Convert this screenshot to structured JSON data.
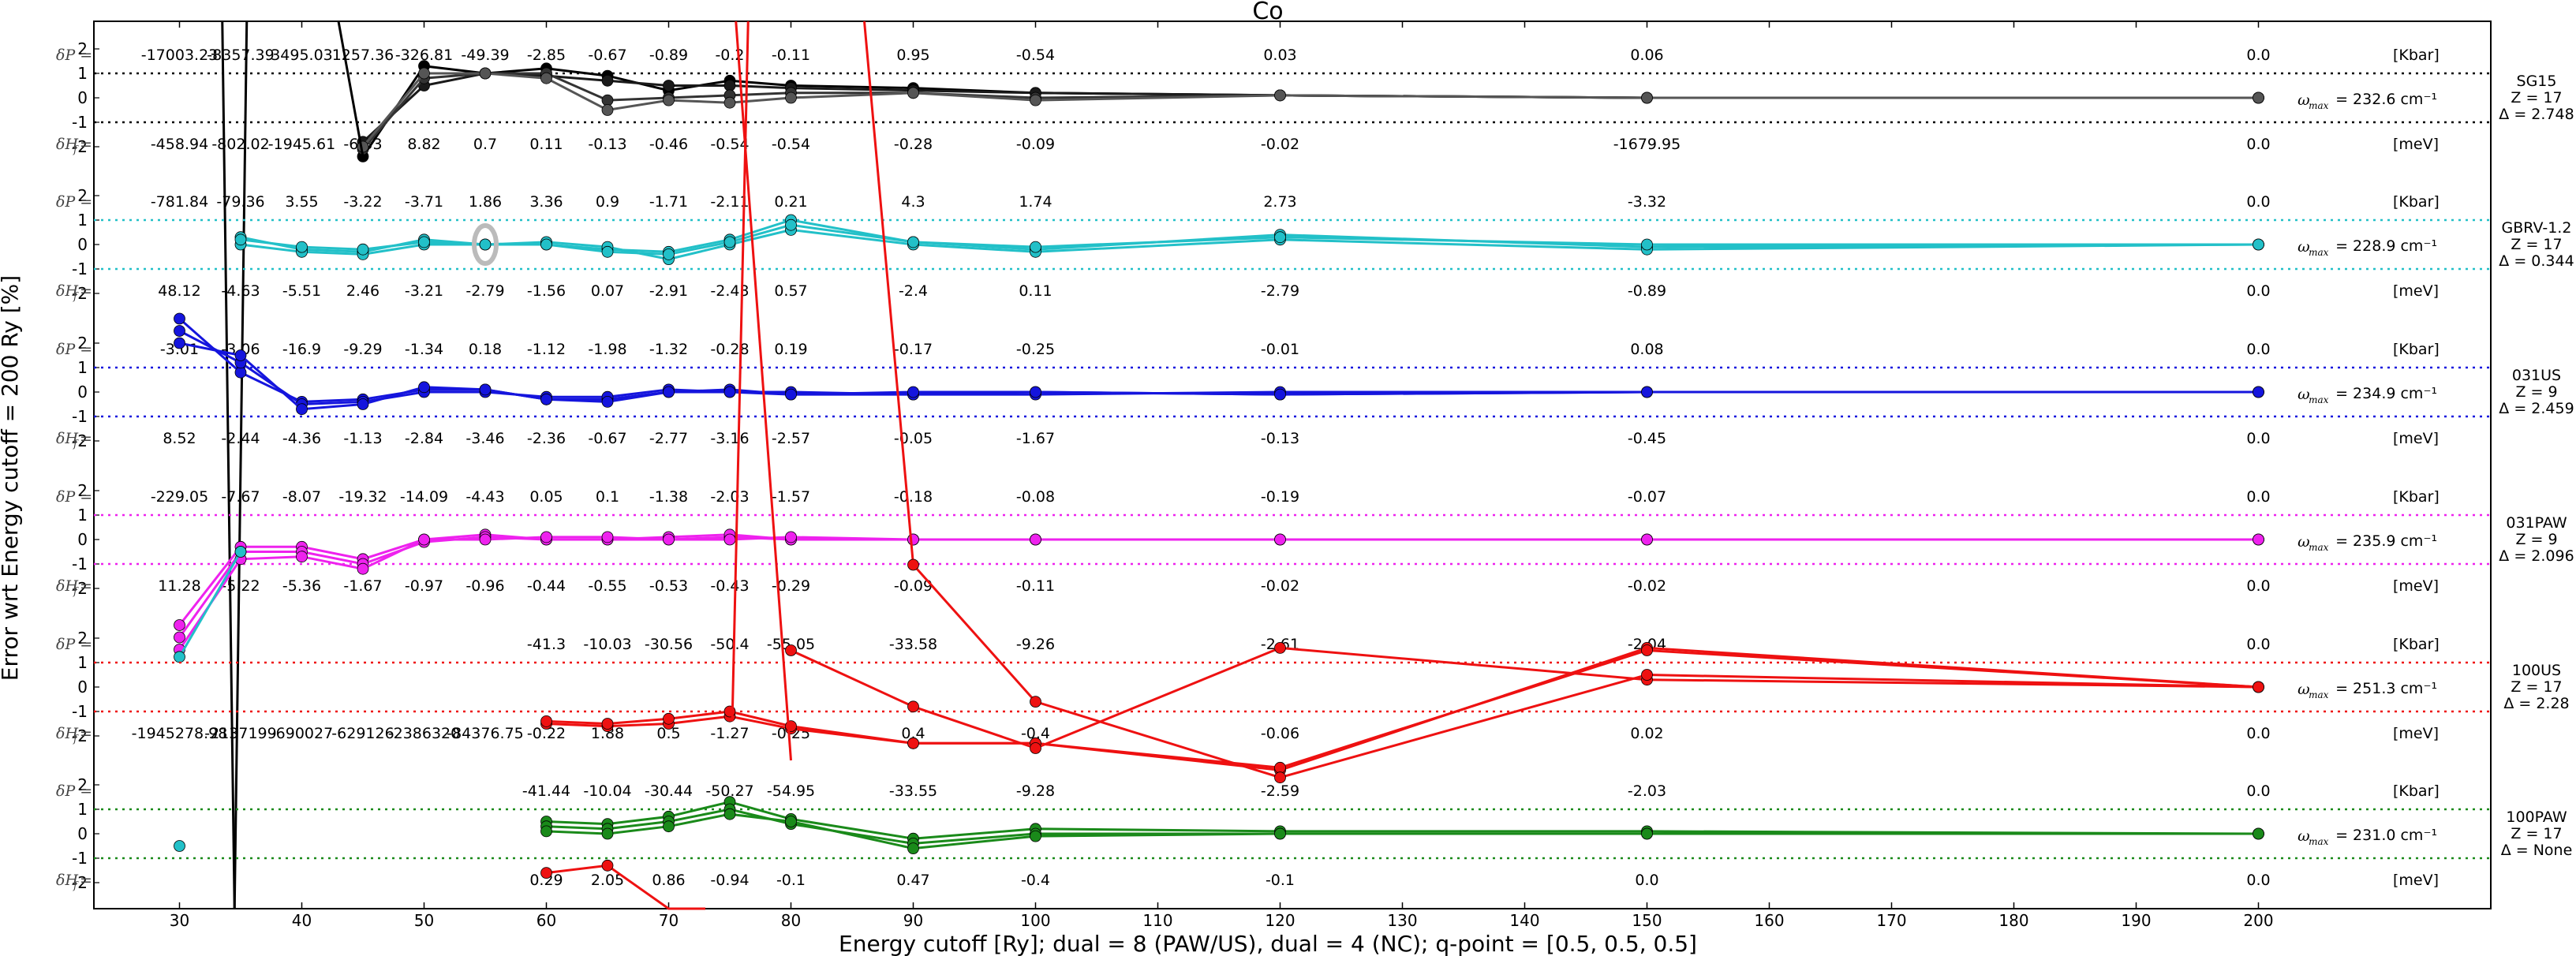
{
  "chart_data": {
    "type": "line",
    "title": "Co",
    "xlabel": "Energy cutoff [Ry]; dual = 8 (PAW/US), dual = 4 (NC); q-point = [0.5, 0.5, 0.5]",
    "ylabel": "Error wrt Energy cutoff = 200 Ry [%]",
    "xlim": [
      23,
      219
    ],
    "x_ticks": [
      30,
      40,
      50,
      60,
      70,
      80,
      90,
      100,
      110,
      120,
      130,
      140,
      150,
      160,
      170,
      180,
      190,
      200
    ],
    "band_ticks": [
      "2",
      "1",
      "0",
      "-1",
      "-2"
    ],
    "grid": false,
    "dP_symbol": "δP =",
    "dH_symbol": "δH",
    "dH_sub": "f",
    "unit_kbar": "[Kbar]",
    "unit_mev": "[meV]",
    "omega_symbol": "ω",
    "omega_sub": "max",
    "panels": [
      {
        "name": "SG15",
        "z": "Z = 17",
        "delta": "Δ = 2.748",
        "color": "#000000",
        "omega": "= 232.6 cm⁻¹",
        "dP_labels": [
          "-17003.23",
          "-8357.39",
          "3495.03",
          "1257.36",
          "-326.81",
          "-49.39",
          "-2.85",
          "-0.67",
          "-0.89",
          "-0.2",
          "-0.11",
          "0.95",
          "-0.54",
          "0.03",
          "0.06",
          "0.0"
        ],
        "dH_labels": [
          "-458.94",
          "-802.02",
          "-1945.61",
          "-6.33",
          "8.82",
          "0.7",
          "0.11",
          "-0.13",
          "-0.46",
          "-0.54",
          "-0.54",
          "-0.28",
          "-0.09",
          "-0.02",
          "-1679.95",
          "0.0"
        ],
        "x": [
          45,
          50,
          55,
          60,
          65,
          70,
          75,
          80,
          90,
          100,
          120,
          150,
          200
        ],
        "series": [
          [
            -2.4,
            1.3,
            1.0,
            1.2,
            0.9,
            0.3,
            0.7,
            0.5,
            0.4,
            0.2,
            0.1,
            0.0,
            0.0
          ],
          [
            -1.8,
            0.5,
            1.0,
            0.9,
            0.7,
            0.5,
            0.5,
            0.4,
            0.3,
            0.2,
            0.1,
            0.0,
            0.0
          ],
          [
            -2.1,
            0.8,
            1.0,
            1.0,
            -0.1,
            0.0,
            0.1,
            0.2,
            0.2,
            0.0,
            0.1,
            0.0,
            0.0
          ],
          [
            -2.0,
            1.0,
            1.0,
            0.8,
            -0.5,
            -0.1,
            -0.2,
            0.0,
            0.2,
            -0.1,
            0.1,
            0.0,
            0.0
          ]
        ],
        "outliers": [
          {
            "x": [
              33.5,
              34.5
            ],
            "y": [
              40,
              -40
            ]
          },
          {
            "x": [
              34.5,
              35.5
            ],
            "y": [
              -40,
              40
            ]
          },
          {
            "x": [
              43,
              45
            ],
            "y": [
              40,
              -2.4
            ]
          }
        ]
      },
      {
        "name": "GBRV-1.2",
        "z": "Z = 17",
        "delta": "Δ = 0.344",
        "color": "#22c0c8",
        "omega": "= 228.9 cm⁻¹",
        "dP_labels": [
          "-781.84",
          "-79.36",
          "3.55",
          "-3.22",
          "-3.71",
          "1.86",
          "3.36",
          "0.9",
          "-1.71",
          "-2.11",
          "0.21",
          "4.3",
          "1.74",
          "2.73",
          "-3.32",
          "0.0"
        ],
        "dH_labels": [
          "48.12",
          "-4.63",
          "-5.51",
          "2.46",
          "-3.21",
          "-2.79",
          "-1.56",
          "0.07",
          "-2.91",
          "-2.43",
          "0.57",
          "-2.4",
          "0.11",
          "-2.79",
          "-0.89",
          "0.0"
        ],
        "x": [
          35,
          40,
          45,
          50,
          55,
          60,
          65,
          70,
          75,
          80,
          90,
          100,
          120,
          150,
          200
        ],
        "series": [
          [
            0.3,
            -0.2,
            -0.3,
            0.2,
            0.0,
            0.0,
            -0.2,
            -0.3,
            0.2,
            1.0,
            0.1,
            -0.2,
            0.4,
            -0.1,
            0.0
          ],
          [
            0.0,
            -0.3,
            -0.4,
            0.0,
            0.0,
            0.1,
            -0.1,
            -0.6,
            0.0,
            0.6,
            0.0,
            -0.3,
            0.2,
            -0.2,
            0.0
          ],
          [
            0.2,
            -0.1,
            -0.2,
            0.1,
            0.0,
            0.0,
            -0.3,
            -0.4,
            0.1,
            0.8,
            0.1,
            -0.1,
            0.3,
            0.0,
            0.0
          ]
        ]
      },
      {
        "name": "031US",
        "z": "Z = 9",
        "delta": "Δ = 2.459",
        "color": "#1515dd",
        "omega": "= 234.9 cm⁻¹",
        "dP_labels": [
          "-3.01",
          "-3.06",
          "-16.9",
          "-9.29",
          "-1.34",
          "0.18",
          "-1.12",
          "-1.98",
          "-1.32",
          "-0.28",
          "0.19",
          "-0.17",
          "-0.25",
          "-0.01",
          "0.08",
          "0.0"
        ],
        "dH_labels": [
          "8.52",
          "-2.44",
          "-4.36",
          "-1.13",
          "-2.84",
          "-3.46",
          "-2.36",
          "-0.67",
          "-2.77",
          "-3.16",
          "-2.57",
          "-0.05",
          "-1.67",
          "-0.13",
          "-0.45",
          "0.0"
        ],
        "x": [
          30,
          35,
          40,
          45,
          50,
          55,
          60,
          65,
          70,
          75,
          80,
          90,
          100,
          120,
          150,
          200
        ],
        "series": [
          [
            3.0,
            0.8,
            -0.4,
            -0.3,
            0.1,
            0.1,
            -0.3,
            -0.3,
            0.0,
            0.1,
            -0.1,
            -0.1,
            0.0,
            -0.1,
            0.0,
            0.0
          ],
          [
            2.5,
            1.2,
            -0.5,
            -0.4,
            0.0,
            0.0,
            -0.2,
            -0.2,
            0.1,
            0.0,
            0.0,
            -0.1,
            -0.1,
            0.0,
            0.0,
            0.0
          ],
          [
            2.0,
            1.5,
            -0.7,
            -0.5,
            0.2,
            0.1,
            -0.3,
            -0.4,
            0.0,
            0.0,
            -0.1,
            0.0,
            0.0,
            -0.1,
            0.0,
            0.0
          ]
        ]
      },
      {
        "name": "031PAW",
        "z": "Z = 9",
        "delta": "Δ = 2.096",
        "color": "#ee22ee",
        "omega": "= 235.9 cm⁻¹",
        "dP_labels": [
          "-229.05",
          "-7.67",
          "-8.07",
          "-19.32",
          "-14.09",
          "-4.43",
          "0.05",
          "0.1",
          "-1.38",
          "-2.03",
          "-1.57",
          "-0.18",
          "-0.08",
          "-0.19",
          "-0.07",
          "0.0"
        ],
        "dH_labels": [
          "11.28",
          "-5.22",
          "-5.36",
          "-1.67",
          "-0.97",
          "-0.96",
          "-0.44",
          "-0.55",
          "-0.53",
          "-0.43",
          "-0.29",
          "-0.09",
          "-0.11",
          "-0.02",
          "-0.02",
          "0.0"
        ],
        "x": [
          30,
          35,
          40,
          45,
          50,
          55,
          60,
          65,
          70,
          75,
          80,
          90,
          100,
          120,
          150,
          200
        ],
        "series": [
          [
            -3.5,
            -0.3,
            -0.3,
            -0.8,
            0.0,
            0.2,
            0.0,
            0.0,
            0.0,
            0.1,
            0.0,
            0.0,
            0.0,
            0.0,
            0.0,
            0.0
          ],
          [
            -4.0,
            -0.5,
            -0.5,
            -1.0,
            -0.1,
            0.1,
            0.0,
            0.0,
            0.1,
            0.2,
            0.0,
            0.0,
            0.0,
            0.0,
            0.0,
            0.0
          ],
          [
            -4.5,
            -0.8,
            -0.7,
            -1.2,
            0.0,
            0.0,
            0.1,
            0.1,
            0.0,
            0.0,
            0.1,
            0.0,
            0.0,
            0.0,
            0.0,
            0.0
          ]
        ],
        "cyan_tail": {
          "x": [
            30,
            35
          ],
          "y": [
            -4.8,
            -0.5
          ]
        }
      },
      {
        "name": "100US",
        "z": "Z = 17",
        "delta": "Δ = 2.28",
        "color": "#ee1111",
        "omega": "= 251.3 cm⁻¹",
        "dP_labels": [
          "-41.3",
          "-10.03",
          "-30.56",
          "-50.4",
          "-55.05",
          "-33.58",
          "-9.26",
          "-2.61",
          "-2.04",
          "0.0"
        ],
        "dP_label_x": [
          60,
          65,
          70,
          75,
          80,
          90,
          100,
          120,
          150,
          200
        ],
        "dH_labels": [
          "-1945278.98",
          "-2137199",
          "-690027",
          "-629126",
          "-2386320",
          "-84376.75",
          "-0.22",
          "1.88",
          "0.5",
          "-1.27",
          "-0.25",
          "0.4",
          "-0.4",
          "-0.06",
          "0.02",
          "0.0"
        ],
        "x": [
          60,
          65,
          70,
          75,
          80,
          90,
          100,
          120,
          150,
          200
        ],
        "series": [
          [
            -1.5,
            -1.6,
            -1.5,
            -1.2,
            -1.7,
            -2.3,
            -2.3,
            -3.4,
            1.6,
            0.0
          ],
          [
            -1.4,
            -1.5,
            -1.3,
            -1.0,
            -1.6,
            -2.3,
            -2.3,
            -3.3,
            1.5,
            0.0
          ]
        ],
        "spike_top": {
          "x": [
            75.5,
            80
          ],
          "y": [
            40,
            -3.0
          ]
        },
        "spike_diag": {
          "x": [
            80,
            90,
            100,
            120,
            150,
            200
          ],
          "y": [
            1.5,
            -0.8,
            -2.5,
            1.6,
            0.3,
            0.0
          ]
        },
        "high_line": {
          "x": [
            86,
            90,
            100,
            120,
            150,
            200
          ],
          "y": [
            40,
            5.0,
            -0.6,
            -3.7,
            0.5,
            0.0
          ]
        }
      },
      {
        "name": "100PAW",
        "z": "Z = 17",
        "delta": "Δ = None",
        "color": "#1a8a1a",
        "omega": "= 231.0 cm⁻¹",
        "dP_labels": [
          "-41.44",
          "-10.04",
          "-30.44",
          "-50.27",
          "-54.95",
          "-33.55",
          "-9.28",
          "-2.59",
          "-2.03",
          "0.0"
        ],
        "dP_label_x": [
          60,
          65,
          70,
          75,
          80,
          90,
          100,
          120,
          150,
          200
        ],
        "dH_labels": [
          "0.29",
          "2.05",
          "0.86",
          "-0.94",
          "-0.1",
          "0.47",
          "-0.4",
          "-0.1",
          "0.0",
          "0.0"
        ],
        "dH_label_x": [
          60,
          65,
          70,
          75,
          80,
          90,
          100,
          120,
          150,
          200
        ],
        "x": [
          60,
          65,
          70,
          75,
          80,
          90,
          100,
          120,
          150,
          200
        ],
        "series": [
          [
            0.5,
            0.4,
            0.7,
            1.3,
            0.6,
            -0.2,
            0.2,
            0.1,
            0.1,
            0.0
          ],
          [
            0.3,
            0.2,
            0.5,
            1.0,
            0.4,
            -0.4,
            0.0,
            0.0,
            0.0,
            0.0
          ],
          [
            0.1,
            0.0,
            0.3,
            0.8,
            0.5,
            -0.6,
            -0.1,
            0.0,
            0.0,
            0.0
          ]
        ],
        "cyan_point": {
          "x": 30,
          "y": -0.5
        },
        "red_tail": {
          "x": [
            60,
            65,
            70,
            73
          ],
          "y": [
            -1.6,
            -1.3,
            -5.0,
            -8.0
          ]
        }
      }
    ],
    "band_mapping": "each panel spans ±2 around its centre line; dotted lines at ±1"
  }
}
